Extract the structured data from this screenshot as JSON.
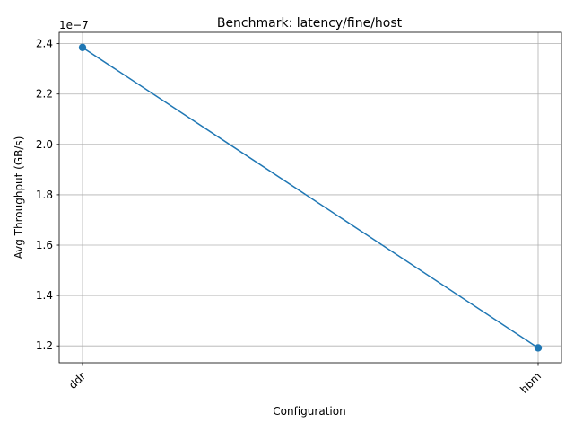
{
  "chart_data": {
    "type": "line",
    "title": "Benchmark: latency/fine/host",
    "xlabel": "Configuration",
    "ylabel": "Avg Throughput (GB/s)",
    "categories": [
      "ddr",
      "hbm"
    ],
    "series": [
      {
        "values": [
          2.385e-07,
          1.192e-07
        ],
        "color": "#1f77b4"
      }
    ],
    "ylim": [
      1.133e-07,
      2.445e-07
    ],
    "yticks": [
      1.2e-07,
      1.4e-07,
      1.6e-07,
      1.8e-07,
      2e-07,
      2.2e-07,
      2.4e-07
    ],
    "ytick_labels": [
      "1.2",
      "1.4",
      "1.6",
      "1.8",
      "2.0",
      "2.2",
      "2.4"
    ],
    "y_offset_label": "1e−7",
    "grid": true,
    "x_tick_rotation": 45
  }
}
